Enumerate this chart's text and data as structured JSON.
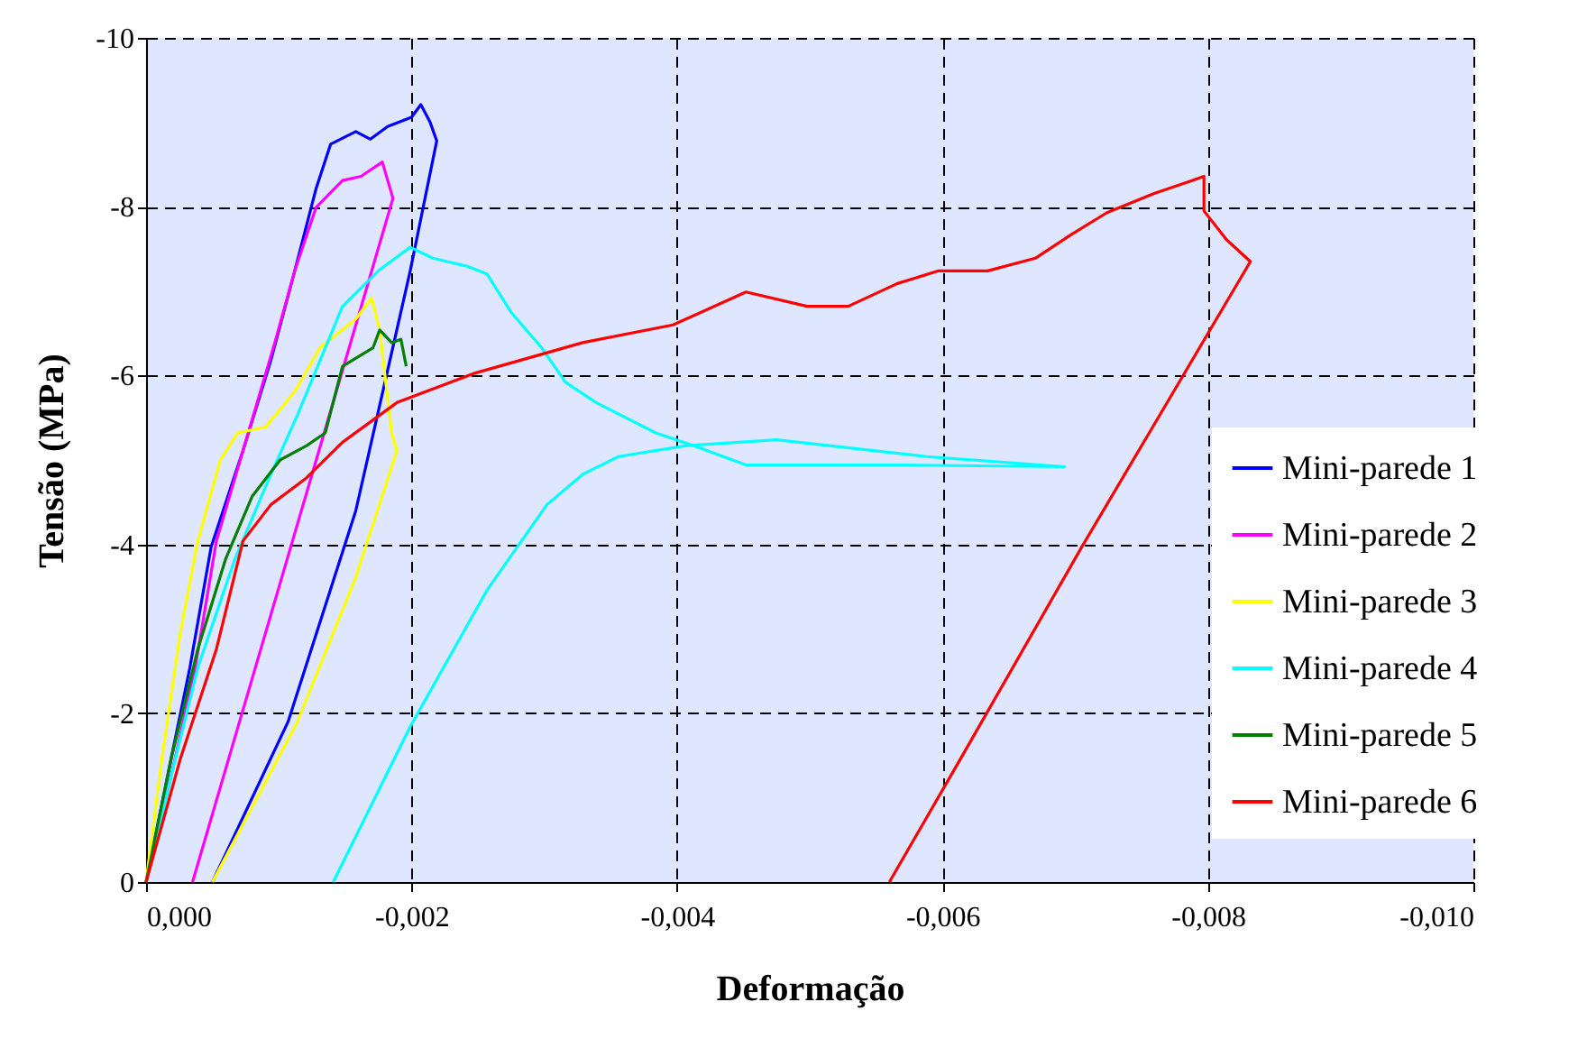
{
  "chart_data": {
    "type": "line",
    "xlabel": "Deformação",
    "ylabel": "Tensão (MPa)",
    "xlim": [
      0,
      -0.01
    ],
    "ylim": [
      0,
      -10
    ],
    "xticks": [
      {
        "value": 0,
        "label": "0,000"
      },
      {
        "value": -0.002,
        "label": "-0,002"
      },
      {
        "value": -0.004,
        "label": "-0,004"
      },
      {
        "value": -0.006,
        "label": "-0,006"
      },
      {
        "value": -0.008,
        "label": "-0,008"
      },
      {
        "value": -0.01,
        "label": "-0,010"
      }
    ],
    "yticks": [
      0,
      -2,
      -4,
      -6,
      -8,
      -10
    ],
    "grid": true,
    "legend": "right",
    "marker": "none",
    "line_style": "solid",
    "series": [
      {
        "name": "Mini-parede 1",
        "color": "#0000ff",
        "x": [
          0,
          -0.00019,
          -0.00033,
          -0.00049,
          -0.00073,
          -0.00094,
          -0.00112,
          -0.00128,
          -0.00139,
          -0.00158,
          -0.00169,
          -0.00182,
          -0.002,
          -0.00207,
          -0.00214,
          -0.00219,
          -0.00199,
          -0.00158,
          -0.00107,
          -0.0005
        ],
        "values": [
          0,
          -1.47,
          -2.54,
          -3.97,
          -5.11,
          -6.18,
          -7.24,
          -8.21,
          -8.74,
          -8.89,
          -8.8,
          -8.95,
          -9.06,
          -9.21,
          -9.0,
          -8.78,
          -7.24,
          -4.4,
          -1.9,
          0
        ]
      },
      {
        "name": "Mini-parede 2",
        "color": "#ff00ff",
        "x": [
          0,
          -0.00022,
          -0.00037,
          -0.00053,
          -0.00073,
          -0.00097,
          -0.00112,
          -0.00128,
          -0.00148,
          -0.00162,
          -0.00178,
          -0.00186,
          -0.00035
        ],
        "values": [
          0,
          -1.47,
          -2.54,
          -4.04,
          -5.11,
          -6.39,
          -7.24,
          -7.99,
          -8.31,
          -8.36,
          -8.53,
          -8.1,
          0
        ]
      },
      {
        "name": "Mini-parede 3",
        "color": "#ffff00",
        "x": [
          0,
          -0.00012,
          -0.00026,
          -0.00039,
          -0.00056,
          -0.00069,
          -0.0009,
          -0.00112,
          -0.00131,
          -0.00158,
          -0.0017,
          -0.00176,
          -0.00185,
          -0.00189,
          -0.00158,
          -0.00114,
          -0.0005
        ],
        "values": [
          0,
          -1.47,
          -2.97,
          -4.04,
          -5.0,
          -5.32,
          -5.39,
          -5.81,
          -6.33,
          -6.67,
          -6.92,
          -6.54,
          -5.32,
          -5.11,
          -3.61,
          -1.9,
          0
        ]
      },
      {
        "name": "Mini-parede 4",
        "color": "#00ffff",
        "x": [
          0,
          -0.00019,
          -0.00039,
          -0.00067,
          -0.00094,
          -0.00114,
          -0.00148,
          -0.00175,
          -0.00199,
          -0.00216,
          -0.00243,
          -0.00257,
          -0.00275,
          -0.00298,
          -0.00316,
          -0.00339,
          -0.00384,
          -0.00416,
          -0.00452,
          -0.0057,
          -0.00692,
          -0.00588,
          -0.00475,
          -0.00407,
          -0.00356,
          -0.00329,
          -0.00302,
          -0.00257,
          -0.00199,
          -0.00141
        ],
        "values": [
          0,
          -1.26,
          -2.54,
          -3.83,
          -4.83,
          -5.53,
          -6.82,
          -7.24,
          -7.52,
          -7.39,
          -7.29,
          -7.2,
          -6.75,
          -6.33,
          -5.92,
          -5.68,
          -5.32,
          -5.15,
          -4.94,
          -4.94,
          -4.92,
          -5.04,
          -5.24,
          -5.17,
          -5.04,
          -4.83,
          -4.47,
          -3.46,
          -1.84,
          0
        ]
      },
      {
        "name": "Mini-parede 5",
        "color": "#008000",
        "x": [
          0,
          -0.00019,
          -0.00039,
          -0.0006,
          -0.0008,
          -0.00101,
          -0.00121,
          -0.00135,
          -0.00148,
          -0.00171,
          -0.00176,
          -0.00185,
          -0.00192,
          -0.00196
        ],
        "values": [
          0,
          -1.47,
          -2.76,
          -3.83,
          -4.57,
          -5.0,
          -5.17,
          -5.32,
          -6.11,
          -6.33,
          -6.54,
          -6.39,
          -6.43,
          -6.11
        ]
      },
      {
        "name": "Mini-parede 6",
        "color": "#ff0000",
        "x": [
          0,
          -0.00026,
          -0.00053,
          -0.00073,
          -0.00094,
          -0.00121,
          -0.00148,
          -0.00189,
          -0.00248,
          -0.00329,
          -0.00397,
          -0.00452,
          -0.00498,
          -0.00529,
          -0.00566,
          -0.00597,
          -0.00634,
          -0.0067,
          -0.00697,
          -0.00724,
          -0.0076,
          -0.00788,
          -0.00797,
          -0.00797,
          -0.00814,
          -0.00832,
          -0.00705,
          -0.00614,
          -0.0056
        ],
        "values": [
          0,
          -1.47,
          -2.76,
          -4.04,
          -4.47,
          -4.79,
          -5.21,
          -5.68,
          -6.03,
          -6.39,
          -6.6,
          -6.99,
          -6.82,
          -6.82,
          -7.09,
          -7.24,
          -7.24,
          -7.39,
          -7.67,
          -7.93,
          -8.16,
          -8.31,
          -8.36,
          -7.95,
          -7.61,
          -7.35,
          -3.97,
          -1.47,
          0
        ]
      }
    ]
  }
}
